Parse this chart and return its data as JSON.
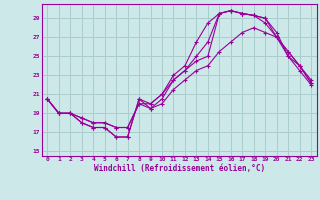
{
  "xlabel": "Windchill (Refroidissement éolien,°C)",
  "xlim": [
    -0.5,
    23.5
  ],
  "ylim": [
    14.5,
    30.5
  ],
  "yticks": [
    15,
    17,
    19,
    21,
    23,
    25,
    27,
    29
  ],
  "xticks": [
    0,
    1,
    2,
    3,
    4,
    5,
    6,
    7,
    8,
    9,
    10,
    11,
    12,
    13,
    14,
    15,
    16,
    17,
    18,
    19,
    20,
    21,
    22,
    23
  ],
  "bg_color": "#cce8e8",
  "line_color": "#990099",
  "grid_color": "#aacccc",
  "line1_x": [
    0,
    1,
    2,
    3,
    4,
    5,
    6,
    7,
    8,
    9,
    10,
    11,
    12,
    13,
    14,
    15,
    16,
    17,
    18,
    19,
    20,
    21,
    22,
    23
  ],
  "line1_y": [
    20.5,
    19.0,
    19.0,
    18.0,
    17.5,
    17.5,
    16.5,
    16.5,
    20.5,
    19.5,
    20.5,
    22.5,
    23.5,
    24.5,
    25.0,
    29.5,
    29.8,
    29.5,
    29.3,
    29.0,
    27.5,
    25.0,
    24.0,
    22.5
  ],
  "line2_x": [
    0,
    1,
    2,
    3,
    4,
    5,
    6,
    7,
    8,
    9,
    10,
    11,
    12,
    13,
    14,
    15,
    16,
    17,
    18,
    19,
    20,
    21,
    22,
    23
  ],
  "line2_y": [
    20.5,
    19.0,
    19.0,
    18.0,
    17.5,
    17.5,
    16.5,
    16.5,
    20.5,
    20.0,
    21.0,
    23.0,
    24.0,
    26.5,
    28.5,
    29.5,
    29.8,
    29.5,
    29.3,
    29.0,
    27.0,
    25.0,
    23.5,
    22.0
  ],
  "line3_x": [
    0,
    1,
    2,
    3,
    4,
    5,
    6,
    7,
    8,
    9,
    10,
    11,
    12,
    13,
    14,
    15,
    16,
    17,
    18,
    19,
    20,
    21,
    22,
    23
  ],
  "line3_y": [
    20.5,
    19.0,
    19.0,
    18.5,
    18.0,
    18.0,
    17.5,
    17.5,
    20.0,
    20.0,
    21.0,
    22.5,
    23.5,
    25.0,
    26.5,
    29.5,
    29.8,
    29.5,
    29.3,
    28.5,
    27.0,
    25.5,
    24.0,
    22.2
  ],
  "line4_x": [
    0,
    1,
    2,
    3,
    4,
    5,
    6,
    7,
    8,
    9,
    10,
    11,
    12,
    13,
    14,
    15,
    16,
    17,
    18,
    19,
    20,
    21,
    22,
    23
  ],
  "line4_y": [
    20.5,
    19.0,
    19.0,
    18.5,
    18.0,
    18.0,
    17.5,
    17.5,
    20.0,
    19.5,
    20.0,
    21.5,
    22.5,
    23.5,
    24.0,
    25.5,
    26.5,
    27.5,
    28.0,
    27.5,
    27.0,
    25.5,
    24.0,
    22.2
  ]
}
